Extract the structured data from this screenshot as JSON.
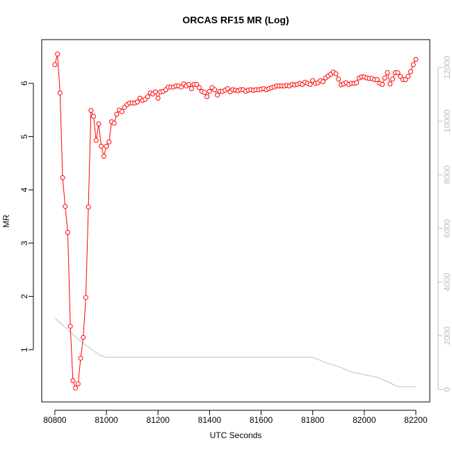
{
  "chart_data": {
    "type": "line",
    "title": "ORCAS RF15 MR (Log)",
    "x_label": "UTC Seconds",
    "y_label": "MR",
    "xlim": [
      80749,
      82254
    ],
    "xticks": [
      80800,
      81000,
      81200,
      81400,
      81600,
      81800,
      82000,
      82200
    ],
    "ylim": [
      0.02,
      6.82
    ],
    "yticks": [
      1,
      2,
      3,
      4,
      5,
      6
    ],
    "y2lim": [
      -466,
      13036
    ],
    "y2ticks": [
      0,
      2000,
      4000,
      6000,
      8000,
      10000,
      12000
    ],
    "series": [
      {
        "color": "#ff0000",
        "markers": true,
        "x": [
          80800,
          80810,
          80820,
          80830,
          80840,
          80850,
          80860,
          80870,
          80880,
          80890,
          80900,
          80910,
          80920,
          80930,
          80940,
          80950,
          80960,
          80970,
          80980,
          80990,
          81000,
          81010,
          81020,
          81030,
          81040,
          81050,
          81060,
          81070,
          81080,
          81090,
          81100,
          81110,
          81120,
          81130,
          81140,
          81150,
          81160,
          81170,
          81180,
          81190,
          81200,
          81210,
          81220,
          81230,
          81240,
          81250,
          81260,
          81270,
          81280,
          81290,
          81300,
          81310,
          81320,
          81330,
          81340,
          81350,
          81360,
          81370,
          81380,
          81390,
          81400,
          81410,
          81420,
          81430,
          81440,
          81450,
          81460,
          81470,
          81480,
          81490,
          81500,
          81510,
          81520,
          81530,
          81540,
          81550,
          81560,
          81570,
          81580,
          81590,
          81600,
          81610,
          81620,
          81630,
          81640,
          81650,
          81660,
          81670,
          81680,
          81690,
          81700,
          81710,
          81720,
          81730,
          81740,
          81750,
          81760,
          81770,
          81780,
          81790,
          81800,
          81810,
          81820,
          81830,
          81840,
          81850,
          81860,
          81870,
          81880,
          81890,
          81900,
          81910,
          81920,
          81930,
          81940,
          81950,
          81960,
          81970,
          81980,
          81990,
          82000,
          82010,
          82020,
          82030,
          82040,
          82050,
          82060,
          82070,
          82080,
          82090,
          82100,
          82110,
          82120,
          82130,
          82140,
          82150,
          82160,
          82170,
          82180,
          82190,
          82200
        ],
        "values": [
          6.35,
          6.55,
          5.82,
          4.23,
          3.69,
          3.2,
          1.44,
          0.42,
          0.28,
          0.36,
          0.84,
          1.23,
          1.98,
          3.68,
          5.49,
          5.38,
          4.93,
          5.24,
          4.82,
          4.63,
          4.82,
          4.9,
          5.28,
          5.25,
          5.42,
          5.5,
          5.47,
          5.55,
          5.6,
          5.63,
          5.63,
          5.63,
          5.65,
          5.72,
          5.68,
          5.7,
          5.75,
          5.82,
          5.8,
          5.84,
          5.72,
          5.84,
          5.85,
          5.88,
          5.93,
          5.93,
          5.93,
          5.95,
          5.95,
          5.93,
          5.99,
          5.95,
          5.98,
          5.9,
          5.98,
          5.98,
          5.92,
          5.85,
          5.83,
          5.75,
          5.85,
          5.92,
          5.88,
          5.78,
          5.85,
          5.85,
          5.87,
          5.9,
          5.84,
          5.88,
          5.87,
          5.86,
          5.88,
          5.88,
          5.85,
          5.87,
          5.88,
          5.87,
          5.88,
          5.88,
          5.89,
          5.9,
          5.88,
          5.9,
          5.92,
          5.93,
          5.95,
          5.95,
          5.95,
          5.95,
          5.96,
          5.95,
          5.98,
          5.97,
          5.98,
          6.0,
          5.98,
          6.02,
          6.0,
          5.98,
          6.05,
          6.0,
          6.01,
          6.05,
          6.03,
          6.1,
          6.14,
          6.17,
          6.21,
          6.18,
          6.08,
          5.97,
          5.99,
          6.01,
          5.98,
          6.0,
          6.0,
          6.01,
          6.1,
          6.12,
          6.12,
          6.1,
          6.09,
          6.09,
          6.07,
          6.07,
          6.0,
          5.98,
          6.1,
          6.2,
          5.99,
          6.08,
          6.2,
          6.2,
          6.13,
          6.07,
          6.07,
          6.13,
          6.22,
          6.35,
          6.45
        ]
      },
      {
        "color": "#bebebe",
        "axis": "y2",
        "markers": false,
        "x": [
          80800,
          80900,
          80975,
          81000,
          81800,
          81850,
          81900,
          81950,
          82050,
          82100,
          82130,
          82200
        ],
        "values": [
          2668,
          1788,
          1270,
          1200,
          1200,
          1000,
          850,
          650,
          450,
          250,
          100,
          100
        ]
      }
    ]
  }
}
